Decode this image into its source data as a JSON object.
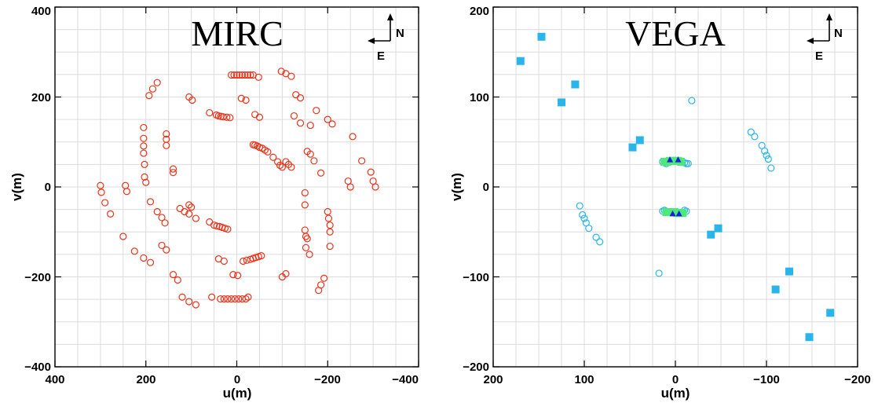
{
  "chart_data": [
    {
      "type": "scatter",
      "title": "MIRC",
      "xlabel": "u(m)",
      "ylabel": "v(m)",
      "xlim": [
        400,
        -400
      ],
      "ylim": [
        -400,
        400
      ],
      "xticks": [
        400,
        200,
        0,
        -200,
        -400
      ],
      "yticks": [
        -400,
        -200,
        0,
        200,
        400
      ],
      "xtick_labels": [
        "400",
        "200",
        "0",
        "−200",
        "−400"
      ],
      "ytick_labels": [
        "−400",
        "−200",
        "0",
        "200",
        "400"
      ],
      "grid": true,
      "compass": {
        "north": "N",
        "east": "E"
      },
      "series": [
        {
          "marker": "open-circle",
          "color": "#e8341c",
          "points": [
            [
              12,
              249
            ],
            [
              6,
              249
            ],
            [
              0,
              249
            ],
            [
              -6,
              249
            ],
            [
              -12,
              249
            ],
            [
              -18,
              249
            ],
            [
              -24,
              249
            ],
            [
              -30,
              249
            ],
            [
              -36,
              249
            ],
            [
              -48,
              244
            ],
            [
              -98,
              257
            ],
            [
              -108,
              252
            ],
            [
              -120,
              246
            ],
            [
              -130,
              205
            ],
            [
              -140,
              198
            ],
            [
              -175,
              170
            ],
            [
              -200,
              150
            ],
            [
              -210,
              140
            ],
            [
              -255,
              112
            ],
            [
              -275,
              58
            ],
            [
              -295,
              33
            ],
            [
              -300,
              13
            ],
            [
              -305,
              0
            ],
            [
              -245,
              13
            ],
            [
              -250,
              0
            ],
            [
              -10,
              197
            ],
            [
              -20,
              193
            ],
            [
              -40,
              161
            ],
            [
              -50,
              155
            ],
            [
              60,
              165
            ],
            [
              45,
              160
            ],
            [
              40,
              158
            ],
            [
              35,
              157
            ],
            [
              30,
              156
            ],
            [
              22,
              155
            ],
            [
              15,
              154
            ],
            [
              105,
              200
            ],
            [
              98,
              193
            ],
            [
              -126,
              158
            ],
            [
              -140,
              142
            ],
            [
              -162,
              137
            ],
            [
              -36,
              94
            ],
            [
              -40,
              93
            ],
            [
              -45,
              91
            ],
            [
              -50,
              88
            ],
            [
              -56,
              86
            ],
            [
              -62,
              82
            ],
            [
              -68,
              78
            ],
            [
              -80,
              66
            ],
            [
              -90,
              56
            ],
            [
              -95,
              48
            ],
            [
              -100,
              44
            ],
            [
              -108,
              56
            ],
            [
              -114,
              50
            ],
            [
              -120,
              44
            ],
            [
              -155,
              79
            ],
            [
              -162,
              73
            ],
            [
              -170,
              58
            ],
            [
              -185,
              31
            ],
            [
              205,
              132
            ],
            [
              205,
              108
            ],
            [
              205,
              91
            ],
            [
              205,
              75
            ],
            [
              203,
              50
            ],
            [
              203,
              22
            ],
            [
              200,
              10
            ],
            [
              175,
              232
            ],
            [
              185,
              218
            ],
            [
              193,
              203
            ],
            [
              155,
              118
            ],
            [
              155,
              106
            ],
            [
              155,
              92
            ],
            [
              140,
              40
            ],
            [
              140,
              32
            ],
            [
              -150,
              -13
            ],
            [
              -150,
              -40
            ],
            [
              -150,
              -96
            ],
            [
              -152,
              -110
            ],
            [
              -155,
              -115
            ],
            [
              -152,
              -135
            ],
            [
              -160,
              -150
            ],
            [
              -200,
              -55
            ],
            [
              -202,
              -70
            ],
            [
              -205,
              -85
            ],
            [
              -205,
              -100
            ],
            [
              -205,
              -132
            ],
            [
              300,
              3
            ],
            [
              298,
              -12
            ],
            [
              290,
              -35
            ],
            [
              278,
              -60
            ],
            [
              245,
              3
            ],
            [
              242,
              -10
            ],
            [
              250,
              -110
            ],
            [
              225,
              -143
            ],
            [
              205,
              -158
            ],
            [
              190,
              -168
            ],
            [
              190,
              -33
            ],
            [
              175,
              -55
            ],
            [
              165,
              -68
            ],
            [
              158,
              -80
            ],
            [
              165,
              -130
            ],
            [
              155,
              -140
            ],
            [
              140,
              -195
            ],
            [
              130,
              -207
            ],
            [
              120,
              -245
            ],
            [
              105,
              -255
            ],
            [
              90,
              -262
            ],
            [
              125,
              -48
            ],
            [
              115,
              -55
            ],
            [
              105,
              -40
            ],
            [
              100,
              -45
            ],
            [
              105,
              -60
            ],
            [
              90,
              -70
            ],
            [
              60,
              -78
            ],
            [
              50,
              -85
            ],
            [
              44,
              -87
            ],
            [
              38,
              -88
            ],
            [
              32,
              -90
            ],
            [
              26,
              -92
            ],
            [
              20,
              -94
            ],
            [
              -14,
              -165
            ],
            [
              -22,
              -163
            ],
            [
              -30,
              -161
            ],
            [
              -36,
              -159
            ],
            [
              -42,
              -157
            ],
            [
              -48,
              -155
            ],
            [
              -54,
              -153
            ],
            [
              40,
              -160
            ],
            [
              28,
              -165
            ],
            [
              8,
              -195
            ],
            [
              -2,
              -197
            ],
            [
              -100,
              -200
            ],
            [
              -108,
              -193
            ],
            [
              -180,
              -230
            ],
            [
              -185,
              -218
            ],
            [
              -192,
              -203
            ],
            [
              -25,
              -245
            ],
            [
              -20,
              -249
            ],
            [
              -12,
              -249
            ],
            [
              -4,
              -249
            ],
            [
              4,
              -249
            ],
            [
              12,
              -249
            ],
            [
              20,
              -249
            ],
            [
              28,
              -249
            ],
            [
              36,
              -249
            ],
            [
              55,
              -245
            ]
          ]
        }
      ]
    },
    {
      "type": "scatter",
      "title": "VEGA",
      "xlabel": "u(m)",
      "ylabel": "v(m)",
      "xlim": [
        200,
        -200
      ],
      "ylim": [
        -200,
        200
      ],
      "xticks": [
        200,
        100,
        0,
        -100,
        -200
      ],
      "yticks": [
        -200,
        -100,
        0,
        100,
        200
      ],
      "xtick_labels": [
        "200",
        "100",
        "0",
        "−100",
        "−200"
      ],
      "ytick_labels": [
        "−200",
        "−100",
        "0",
        "100",
        "200"
      ],
      "grid": true,
      "compass": {
        "north": "N",
        "east": "E"
      },
      "series": [
        {
          "marker": "filled-square",
          "color": "#29b5ea",
          "points": [
            [
              170,
              140
            ],
            [
              147,
              167
            ],
            [
              110,
              114
            ],
            [
              125,
              94
            ],
            [
              47,
              44
            ],
            [
              39,
              52
            ],
            [
              -47,
              -46
            ],
            [
              -39,
              -53
            ],
            [
              -110,
              -114
            ],
            [
              -125,
              -94
            ],
            [
              -147,
              -167
            ],
            [
              -170,
              -140
            ]
          ]
        },
        {
          "marker": "open-circle",
          "color": "#29b5ea",
          "points": [
            [
              -18,
              96
            ],
            [
              18,
              -96
            ],
            [
              -83,
              61
            ],
            [
              -87,
              56
            ],
            [
              -95,
              46
            ],
            [
              -98,
              40
            ],
            [
              -100,
              35
            ],
            [
              -102,
              31
            ],
            [
              -105,
              21
            ],
            [
              105,
              -21
            ],
            [
              102,
              -31
            ],
            [
              100,
              -35
            ],
            [
              98,
              -40
            ],
            [
              95,
              -46
            ],
            [
              87,
              -56
            ],
            [
              83,
              -61
            ],
            [
              10,
              26
            ],
            [
              12,
              27
            ],
            [
              14,
              28
            ],
            [
              -10,
              27
            ],
            [
              -12,
              26
            ],
            [
              -14,
              26
            ],
            [
              10,
              -27
            ],
            [
              12,
              -26
            ],
            [
              14,
              -27
            ],
            [
              -10,
              -26
            ],
            [
              -12,
              -27
            ]
          ]
        },
        {
          "marker": "filled-square",
          "color": "#4ce87a",
          "points": [
            [
              12,
              28
            ],
            [
              9,
              28
            ],
            [
              6,
              29
            ],
            [
              3,
              29
            ],
            [
              0,
              29
            ],
            [
              -3,
              29
            ],
            [
              -6,
              28
            ],
            [
              -8,
              -29
            ],
            [
              -5,
              -29
            ],
            [
              -2,
              -29
            ],
            [
              1,
              -28
            ],
            [
              4,
              -28
            ],
            [
              7,
              -28
            ],
            [
              10,
              -28
            ]
          ]
        },
        {
          "marker": "filled-triangle",
          "color": "#1a1ed8",
          "points": [
            [
              6,
              30
            ],
            [
              -3,
              30
            ],
            [
              3,
              -30
            ],
            [
              -4,
              -30
            ]
          ]
        }
      ]
    }
  ]
}
